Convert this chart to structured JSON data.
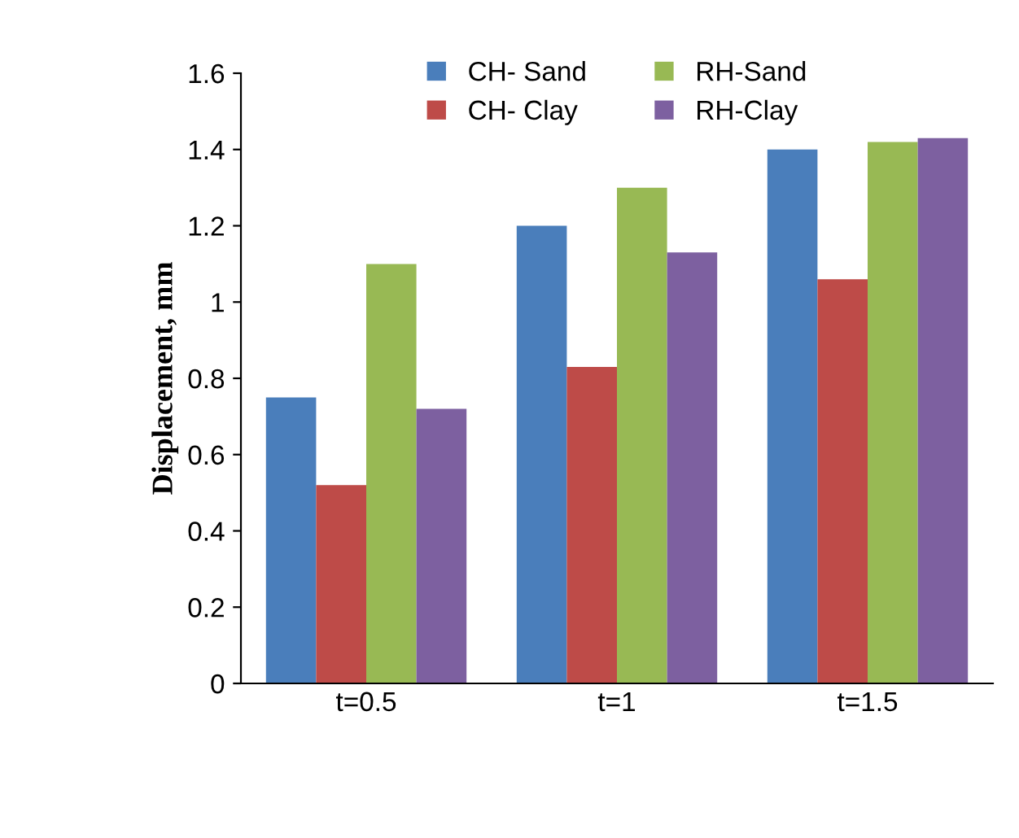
{
  "chart_data": {
    "type": "bar",
    "ylabel": "Displacement, mm",
    "categories": [
      "t=0.5",
      "t=1",
      "t=1.5"
    ],
    "series": [
      {
        "name": "CH- Sand",
        "color": "#4a7ebb",
        "values": [
          0.75,
          1.2,
          1.4
        ]
      },
      {
        "name": "CH- Clay",
        "color": "#be4b48",
        "values": [
          0.52,
          0.83,
          1.06
        ]
      },
      {
        "name": "RH-Sand",
        "color": "#98b954",
        "values": [
          1.1,
          1.3,
          1.42
        ]
      },
      {
        "name": "RH-Clay",
        "color": "#7d60a0",
        "values": [
          0.72,
          1.13,
          1.43
        ]
      }
    ],
    "ylim": [
      0,
      1.6
    ],
    "yticks": [
      0,
      0.2,
      0.4,
      0.6,
      0.8,
      1,
      1.2,
      1.4,
      1.6
    ],
    "grid": false,
    "legend": "top"
  }
}
